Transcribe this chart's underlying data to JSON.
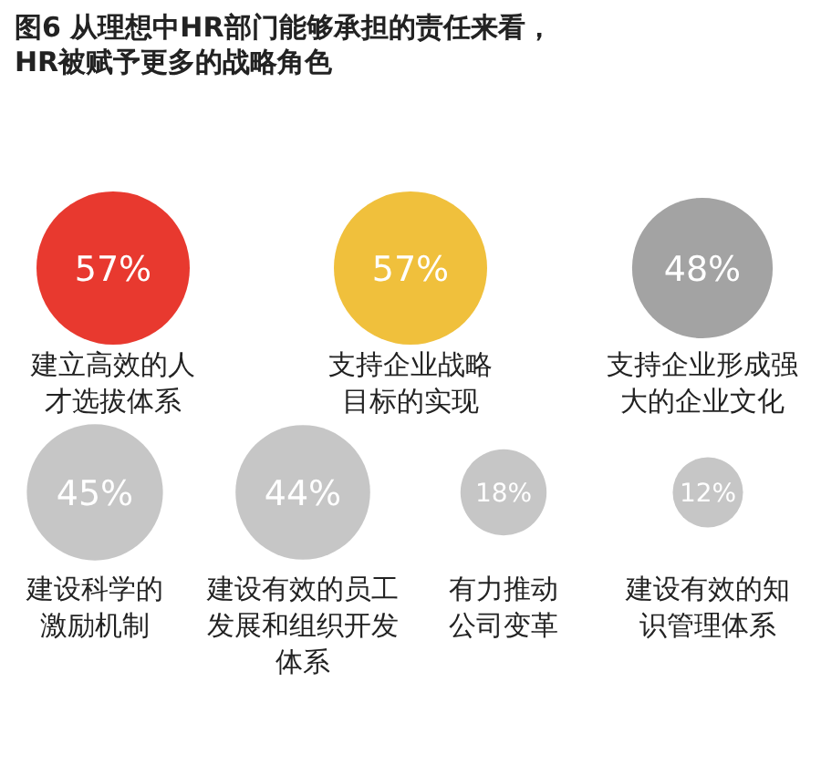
{
  "chart_data": {
    "type": "other",
    "title": "图6 从理想中HR部门能够承担的责任来看，HR被赋予更多的战略角色",
    "categories": [
      "建立高效的人才选拔体系",
      "支持企业战略目标的实现",
      "支持企业形成强大的企业文化",
      "建设科学的激励机制",
      "建设有效的员工发展和组织开发体系",
      "有力推动公司变革",
      "建设有效的知识管理体系"
    ],
    "values": [
      57,
      57,
      48,
      45,
      44,
      18,
      12
    ],
    "value_labels": [
      "57%",
      "57%",
      "48%",
      "45%",
      "44%",
      "18%",
      "12%"
    ],
    "colors": [
      "#e8392f",
      "#f0c03c",
      "#a3a3a3",
      "#c6c6c6",
      "#c6c6c6",
      "#c6c6c6",
      "#c6c6c6"
    ]
  }
}
